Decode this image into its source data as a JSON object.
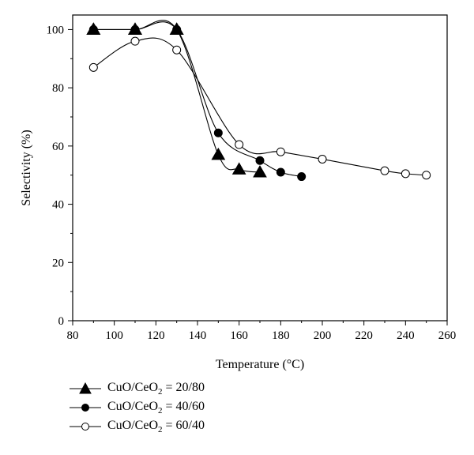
{
  "chart_data": {
    "type": "line",
    "xlabel": "Temperature (°C)",
    "ylabel": "Selectivity (%)",
    "xlim": [
      80,
      260
    ],
    "ylim": [
      0,
      105
    ],
    "xticks": [
      80,
      100,
      120,
      140,
      160,
      180,
      200,
      220,
      240,
      260
    ],
    "yticks": [
      0,
      20,
      40,
      60,
      80,
      100
    ],
    "grid": false,
    "legend_position": "bottom-left",
    "series": [
      {
        "name": "CuO/CeO₂ = 20/80",
        "label_main": "CuO/CeO",
        "label_sub": "2",
        "label_tail": " = 20/80",
        "marker": "triangle-filled",
        "x": [
          90,
          110,
          130,
          150,
          160,
          170
        ],
        "y": [
          100,
          100,
          100,
          57,
          52,
          51
        ]
      },
      {
        "name": "CuO/CeO₂ = 40/60",
        "label_main": "CuO/CeO",
        "label_sub": "2",
        "label_tail": " = 40/60",
        "marker": "circle-filled",
        "x": [
          90,
          110,
          130,
          150,
          170,
          180,
          190
        ],
        "y": [
          100,
          100,
          100,
          64.5,
          55,
          51,
          49.5
        ]
      },
      {
        "name": "CuO/CeO₂ = 60/40",
        "label_main": "CuO/CeO",
        "label_sub": "2",
        "label_tail": " = 60/40",
        "marker": "circle-open",
        "x": [
          90,
          110,
          130,
          160,
          180,
          200,
          230,
          240,
          250
        ],
        "y": [
          87,
          96,
          93,
          60.5,
          58,
          55.5,
          51.5,
          50.5,
          50
        ]
      }
    ]
  }
}
